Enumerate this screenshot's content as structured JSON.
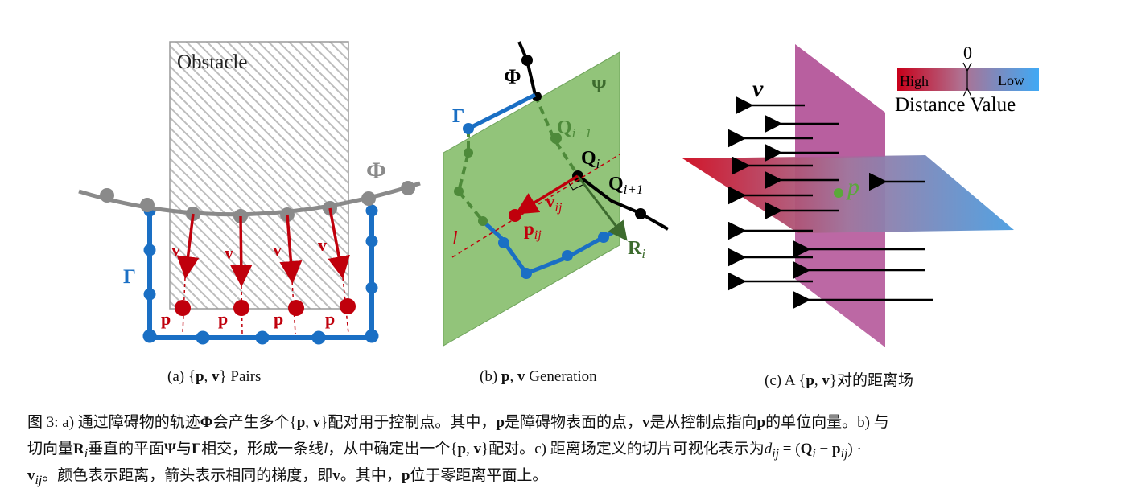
{
  "panel_a": {
    "obstacle_label": "Obstacle",
    "phi_label": "Φ",
    "gamma_label": "Γ",
    "v_label": "v",
    "p_label": "p",
    "caption": "(a) {p, v} Pairs"
  },
  "panel_b": {
    "psi_label": "Ψ",
    "phi_label": "Φ",
    "gamma_label": "Γ",
    "q_prev_label": "Qi−1",
    "q_label": "Qi",
    "q_next_label": "Qi+1",
    "v_label": "vij",
    "p_label": "pij",
    "l_label": "l",
    "r_label": "Ri",
    "caption": "(b) p, v Generation"
  },
  "panel_c": {
    "v_label": "v",
    "p_label": "p",
    "zero_label": "0",
    "high_label": "High",
    "low_label": "Low",
    "legend_title": "Distance Value",
    "caption": "(c) A {p, v}对的距离场"
  },
  "caption": {
    "line1": "图 3: a) 通过障碍物的轨迹Φ会产生多个{p, v}配对用于控制点。其中，p是障碍物表面的点，v是从控制点指向p的单位向量。b) 与",
    "line2": "切向量Ri垂直的平面Ψ与Γ相交，形成一条线l，从中确定出一个{p, v}配对。c) 距离场定义的切片可视化表示为dij = (Qi − pij) ·",
    "line3": "vij。颜色表示距离，箭头表示相同的梯度，即v。其中，p位于零距离平面上。"
  },
  "colors": {
    "blue": "#1a6fc4",
    "red": "#c0000c",
    "gray": "#8a8a8a",
    "green_plane": "#92c47a",
    "green_dark": "#4e8a3a",
    "magenta_plane": "#b5589a",
    "low_blue": "#34b8ee"
  }
}
